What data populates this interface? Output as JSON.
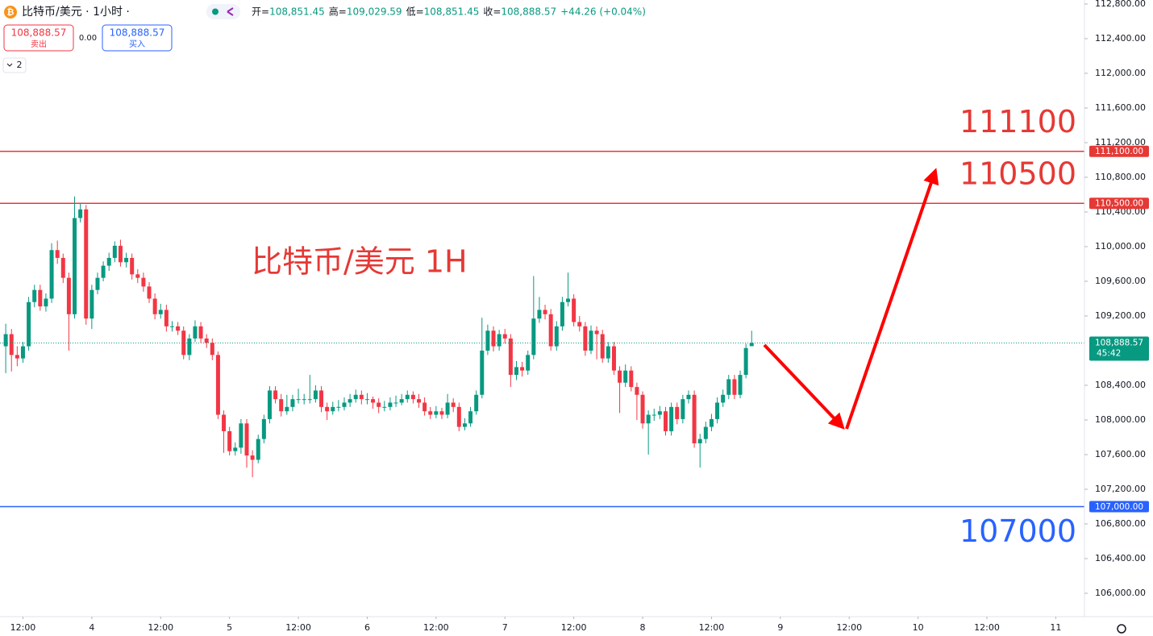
{
  "toolbar": {
    "symbol": "比特币/美元 · 1小时 ·",
    "ohlc": [
      {
        "label": "开=",
        "value": "108,851.45"
      },
      {
        "label": "高=",
        "value": "109,029.59"
      },
      {
        "label": "低=",
        "value": "108,851.45"
      },
      {
        "label": "收=",
        "value": "108,888.57"
      }
    ],
    "change": "+44.26 (+0.04%)",
    "sell": {
      "price": "108,888.57",
      "label": "卖出"
    },
    "spread": "0.00",
    "buy": {
      "price": "108,888.57",
      "label": "买入"
    },
    "collapse": "2"
  },
  "chart_data": {
    "type": "candlestick",
    "annotation": "比特币/美元 1H",
    "up_color": "#089981",
    "down_color": "#f23645",
    "open": [
      108850,
      108990,
      108750,
      108710,
      108850,
      109360,
      109500,
      109310,
      109400,
      109960,
      109870,
      109640,
      109220,
      110330,
      110430,
      109170,
      109500,
      109640,
      109780,
      109870,
      110010,
      109820,
      109870,
      109680,
      109640,
      109540,
      109400,
      109220,
      109270,
      109080,
      109080,
      109030,
      108750,
      108940,
      109080,
      108940,
      108890,
      108750,
      108060,
      107870,
      107640,
      107680,
      107960,
      107590,
      107540,
      107780,
      108010,
      108340,
      108240,
      108100,
      108150,
      108240,
      108240,
      108240,
      108240,
      108340,
      108150,
      108100,
      108150,
      108150,
      108200,
      108240,
      108290,
      108240,
      108240,
      108200,
      108150,
      108150,
      108200,
      108200,
      108240,
      108290,
      108240,
      108200,
      108100,
      108060,
      108100,
      108060,
      108200,
      108150,
      107920,
      107960,
      108100,
      108290,
      108800,
      109030,
      108850,
      108990,
      108940,
      108520,
      108610,
      108570,
      108750,
      109170,
      109270,
      109220,
      108850,
      109080,
      109360,
      109400,
      109130,
      109080,
      108800,
      109030,
      108990,
      108710,
      108850,
      108570,
      108430,
      108570,
      108380,
      108290,
      107960,
      108060,
      108060,
      108100,
      107870,
      108150,
      108010,
      108240,
      108290,
      107730,
      107780,
      107920,
      108010,
      108200,
      108290,
      108470,
      108290,
      108520,
      108851.45
    ],
    "high": [
      109110,
      109050,
      108850,
      108900,
      109420,
      109560,
      109560,
      109460,
      110040,
      110070,
      109920,
      109700,
      110580,
      110500,
      110480,
      109560,
      109700,
      109830,
      109930,
      110060,
      110080,
      109930,
      109920,
      109740,
      109700,
      109590,
      109460,
      109340,
      109330,
      109140,
      109130,
      109080,
      108990,
      109150,
      109130,
      108990,
      108940,
      108790,
      108110,
      107920,
      107740,
      108010,
      108010,
      107650,
      107830,
      108060,
      108390,
      108390,
      108300,
      108290,
      108290,
      108360,
      108300,
      108520,
      108400,
      108390,
      108200,
      108210,
      108230,
      108260,
      108300,
      108350,
      108340,
      108310,
      108270,
      108250,
      108220,
      108260,
      108280,
      108300,
      108340,
      108330,
      108300,
      108260,
      108150,
      108160,
      108140,
      108300,
      108250,
      108200,
      108020,
      108150,
      108340,
      109180,
      109100,
      109080,
      109040,
      109050,
      108990,
      108680,
      108670,
      108800,
      109660,
      109420,
      109330,
      109280,
      109140,
      109420,
      109700,
      109450,
      109200,
      109130,
      109090,
      109080,
      109040,
      108900,
      108900,
      108620,
      108640,
      108620,
      108430,
      108330,
      108110,
      108130,
      108160,
      108150,
      108200,
      108200,
      108290,
      108340,
      108340,
      107840,
      107980,
      108070,
      108260,
      108350,
      108520,
      108520,
      108570,
      108880,
      109029.59
    ],
    "low": [
      108540,
      108560,
      108620,
      108660,
      108800,
      109300,
      109260,
      109250,
      109350,
      109800,
      109580,
      108800,
      109170,
      110280,
      109100,
      109050,
      109450,
      109600,
      109720,
      109820,
      109770,
      109760,
      109620,
      109580,
      109480,
      109350,
      109160,
      109170,
      109020,
      109020,
      108980,
      108700,
      108690,
      108900,
      108890,
      108830,
      108690,
      108010,
      107620,
      107590,
      107590,
      107610,
      107450,
      107340,
      107500,
      107730,
      107960,
      108190,
      108040,
      108060,
      108100,
      108190,
      108180,
      108190,
      108200,
      108090,
      108000,
      108060,
      108100,
      108110,
      108150,
      108200,
      108180,
      108180,
      108130,
      108080,
      108100,
      108110,
      108150,
      108170,
      108200,
      108190,
      108140,
      108050,
      108010,
      108020,
      108010,
      108020,
      108090,
      107870,
      107880,
      107920,
      108060,
      108250,
      108750,
      108790,
      108800,
      108880,
      108380,
      108460,
      108500,
      108520,
      108700,
      109120,
      109160,
      108800,
      108800,
      109030,
      109310,
      109080,
      109020,
      108740,
      108760,
      108700,
      108660,
      108660,
      108520,
      108080,
      108380,
      108330,
      108000,
      107900,
      107600,
      107990,
      108010,
      107820,
      107820,
      107950,
      107960,
      108190,
      107680,
      107450,
      107730,
      107870,
      107960,
      108150,
      108240,
      108240,
      108250,
      108480,
      108851.45
    ],
    "close": [
      108990,
      108750,
      108710,
      108850,
      109360,
      109500,
      109310,
      109400,
      109960,
      109870,
      109640,
      109220,
      110330,
      110430,
      109170,
      109500,
      109640,
      109780,
      109870,
      110010,
      109820,
      109870,
      109680,
      109640,
      109540,
      109400,
      109220,
      109270,
      109080,
      109080,
      109030,
      108750,
      108940,
      109080,
      108940,
      108890,
      108750,
      108060,
      107870,
      107640,
      107680,
      107960,
      107590,
      107540,
      107780,
      108010,
      108340,
      108240,
      108100,
      108150,
      108240,
      108240,
      108240,
      108240,
      108340,
      108150,
      108100,
      108150,
      108150,
      108200,
      108240,
      108290,
      108240,
      108240,
      108200,
      108150,
      108150,
      108200,
      108200,
      108240,
      108290,
      108240,
      108200,
      108100,
      108060,
      108100,
      108060,
      108200,
      108150,
      107920,
      107960,
      108100,
      108290,
      108800,
      109030,
      108850,
      108990,
      108940,
      108520,
      108610,
      108570,
      108750,
      109170,
      109270,
      109220,
      108850,
      109080,
      109360,
      109400,
      109130,
      109080,
      108800,
      109030,
      108990,
      108710,
      108850,
      108570,
      108430,
      108570,
      108380,
      108290,
      107960,
      108060,
      108060,
      108100,
      107870,
      108150,
      108010,
      108240,
      108290,
      107730,
      107780,
      107920,
      108010,
      108200,
      108290,
      108470,
      108290,
      108520,
      108830,
      108888.57
    ],
    "xlim": [
      -1,
      188
    ],
    "xticks": [
      {
        "value": 3,
        "label": "12:00"
      },
      {
        "value": 15,
        "label": "4"
      },
      {
        "value": 27,
        "label": "12:00"
      },
      {
        "value": 39,
        "label": "5"
      },
      {
        "value": 51,
        "label": "12:00"
      },
      {
        "value": 63,
        "label": "6"
      },
      {
        "value": 75,
        "label": "12:00"
      },
      {
        "value": 87,
        "label": "7"
      },
      {
        "value": 99,
        "label": "12:00"
      },
      {
        "value": 111,
        "label": "8"
      },
      {
        "value": 123,
        "label": "12:00"
      },
      {
        "value": 135,
        "label": "9"
      },
      {
        "value": 147,
        "label": "12:00"
      },
      {
        "value": 159,
        "label": "10"
      },
      {
        "value": 171,
        "label": "12:00"
      },
      {
        "value": 183,
        "label": "11"
      }
    ],
    "ylim": [
      105730,
      112846
    ],
    "yticks": [
      {
        "value": 106000,
        "label": "106,000.00"
      },
      {
        "value": 106400,
        "label": "106,400.00"
      },
      {
        "value": 106800,
        "label": "106,800.00"
      },
      {
        "value": 107200,
        "label": "107,200.00"
      },
      {
        "value": 107600,
        "label": "107,600.00"
      },
      {
        "value": 108000,
        "label": "108,000.00"
      },
      {
        "value": 108400,
        "label": "108,400.00"
      },
      {
        "value": 109200,
        "label": "109,200.00"
      },
      {
        "value": 109600,
        "label": "109,600.00"
      },
      {
        "value": 110000,
        "label": "110,000.00"
      },
      {
        "value": 110400,
        "label": "110,400.00"
      },
      {
        "value": 110800,
        "label": "110,800.00"
      },
      {
        "value": 111200,
        "label": "111,200.00"
      },
      {
        "value": 111600,
        "label": "111,600.00"
      },
      {
        "value": 112000,
        "label": "112,000.00"
      },
      {
        "value": 112400,
        "label": "112,400.00"
      },
      {
        "value": 112800,
        "label": "112,800.00"
      }
    ],
    "levels": [
      {
        "value": 111100,
        "label": "111,100.00",
        "color": "#e53935"
      },
      {
        "value": 110500,
        "label": "110,500.00",
        "color": "#e53935"
      },
      {
        "value": 107000,
        "label": "107,000.00",
        "color": "#2962ff"
      }
    ],
    "last_price": {
      "value": 108888.57,
      "label": "108,888.57",
      "countdown": "45:42",
      "color": "#089981"
    }
  }
}
